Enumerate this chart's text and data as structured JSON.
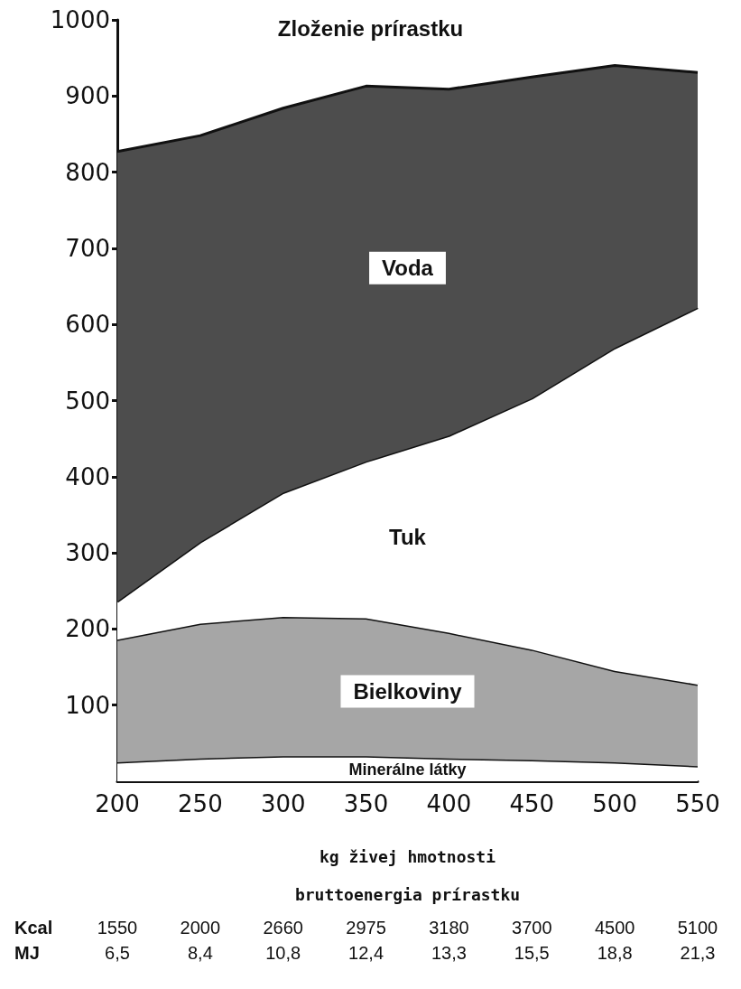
{
  "chart_data": {
    "type": "area",
    "title": "Zloženie prírastku",
    "xlabel": "kg živej hmotnosti",
    "stacked": true,
    "marker": "none",
    "categories": [
      "200",
      "250",
      "300",
      "350",
      "400",
      "450",
      "500",
      "550"
    ],
    "ylim": [
      0,
      1000
    ],
    "yticks": [
      100,
      200,
      300,
      400,
      500,
      600,
      700,
      800,
      900,
      {
        "value": 1000,
        "label": "1000"
      }
    ],
    "series": [
      {
        "name": "Minerálne látky",
        "color": "#ffffff",
        "values": [
          25,
          30,
          33,
          33,
          30,
          28,
          25,
          20
        ]
      },
      {
        "name": "Bielkoviny",
        "color": "#a6a6a6",
        "values": [
          161,
          177,
          183,
          181,
          165,
          145,
          120,
          107
        ]
      },
      {
        "name": "Tuk",
        "color": "#ffffff",
        "values": [
          50,
          107,
          163,
          206,
          259,
          330,
          424,
          495
        ]
      },
      {
        "name": "Voda",
        "color": "#4d4d4d",
        "values": [
          591,
          534,
          505,
          493,
          455,
          422,
          371,
          309
        ]
      }
    ],
    "annotations": [
      "bruttoenergia prírastku",
      "Kcal",
      "MJ",
      "1550",
      "2000",
      "2660",
      "2975",
      "3180",
      "3700",
      "4500",
      "5100",
      "6,5",
      "8,4",
      "10,8",
      "12,4",
      "13,3",
      "15,5",
      "18,8",
      "21,3"
    ]
  }
}
